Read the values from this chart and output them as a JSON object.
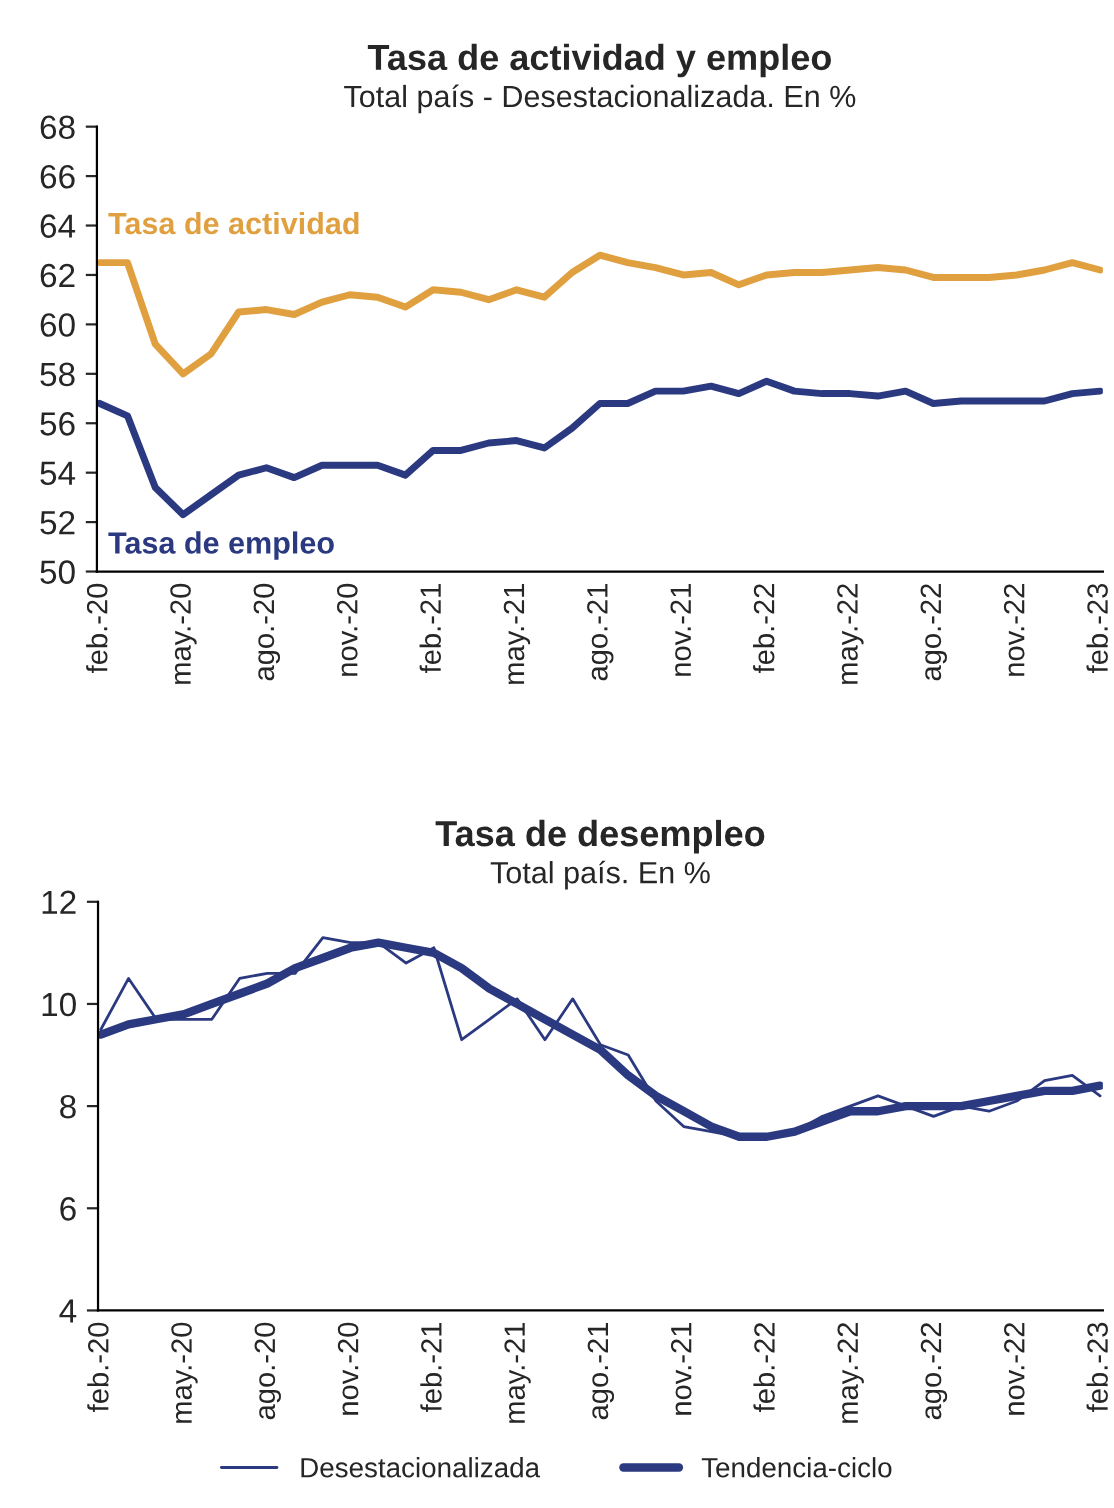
{
  "chart_data": [
    {
      "type": "line",
      "title": "Tasa de actividad y empleo",
      "subtitle": "Total país - Desestacionalizada. En %",
      "categories": [
        "feb.-20",
        null,
        null,
        "may.-20",
        null,
        null,
        "ago.-20",
        null,
        null,
        "nov.-20",
        null,
        null,
        "feb.-21",
        null,
        null,
        "may.-21",
        null,
        null,
        "ago.-21",
        null,
        null,
        "nov.-21",
        null,
        null,
        "feb.-22",
        null,
        null,
        "may.-22",
        null,
        null,
        "ago.-22",
        null,
        null,
        "nov.-22",
        null,
        null,
        "feb.-23"
      ],
      "ylim": [
        50,
        68
      ],
      "yticks": [
        50,
        52,
        54,
        56,
        58,
        60,
        62,
        64,
        66,
        68
      ],
      "grid": false,
      "legend": false,
      "line_style": "solid",
      "marker": "none",
      "series": [
        {
          "name": "Tasa de actividad",
          "color": "#e0a040",
          "values": [
            62.5,
            62.5,
            59.2,
            58.0,
            58.8,
            60.5,
            60.6,
            60.4,
            60.9,
            61.2,
            61.1,
            60.7,
            61.4,
            61.3,
            61.0,
            61.4,
            61.1,
            62.1,
            62.8,
            62.5,
            62.3,
            62.0,
            62.1,
            61.6,
            62.0,
            62.1,
            62.1,
            62.2,
            62.3,
            62.2,
            61.9,
            61.9,
            61.9,
            62.0,
            62.2,
            62.5,
            62.2
          ]
        },
        {
          "name": "Tasa de empleo",
          "color": "#2b3a80",
          "values": [
            56.8,
            56.3,
            53.4,
            52.3,
            53.1,
            53.9,
            54.2,
            53.8,
            54.3,
            54.3,
            54.3,
            53.9,
            54.9,
            54.9,
            55.2,
            55.3,
            55.0,
            55.8,
            56.8,
            56.8,
            57.3,
            57.3,
            57.5,
            57.2,
            57.7,
            57.3,
            57.2,
            57.2,
            57.1,
            57.3,
            56.8,
            56.9,
            56.9,
            56.9,
            56.9,
            57.2,
            57.3
          ]
        }
      ]
    },
    {
      "type": "line",
      "title": "Tasa de desempleo",
      "subtitle": "Total país. En %",
      "categories": [
        "feb.-20",
        null,
        null,
        "may.-20",
        null,
        null,
        "ago.-20",
        null,
        null,
        "nov.-20",
        null,
        null,
        "feb.-21",
        null,
        null,
        "may.-21",
        null,
        null,
        "ago.-21",
        null,
        null,
        "nov.-21",
        null,
        null,
        "feb.-22",
        null,
        null,
        "may.-22",
        null,
        null,
        "ago.-22",
        null,
        null,
        "nov.-22",
        null,
        null,
        "feb.-23"
      ],
      "ylim": [
        4,
        12
      ],
      "yticks": [
        4,
        6,
        8,
        10,
        12
      ],
      "grid": false,
      "legend": "bottom",
      "line_style": "solid",
      "marker": "none",
      "series": [
        {
          "name": "Desestacionalizada",
          "color": "#2b3a80",
          "values": [
            9.5,
            10.5,
            9.7,
            9.7,
            9.7,
            10.5,
            10.6,
            10.6,
            11.3,
            11.2,
            11.2,
            10.8,
            11.1,
            9.3,
            9.7,
            10.1,
            9.3,
            10.1,
            9.2,
            9.0,
            8.1,
            7.6,
            7.5,
            7.4,
            7.4,
            7.5,
            7.8,
            8.0,
            8.2,
            8.0,
            7.8,
            8.0,
            7.9,
            8.1,
            8.5,
            8.6,
            8.2
          ]
        },
        {
          "name": "Tendencia-ciclo",
          "color": "#2b3a80",
          "values": [
            9.4,
            9.6,
            9.7,
            9.8,
            10.0,
            10.2,
            10.4,
            10.7,
            10.9,
            11.1,
            11.2,
            11.1,
            11.0,
            10.7,
            10.3,
            10.0,
            9.7,
            9.4,
            9.1,
            8.6,
            8.2,
            7.9,
            7.6,
            7.4,
            7.4,
            7.5,
            7.7,
            7.9,
            7.9,
            8.0,
            8.0,
            8.0,
            8.1,
            8.2,
            8.3,
            8.3,
            8.4
          ]
        }
      ]
    }
  ]
}
